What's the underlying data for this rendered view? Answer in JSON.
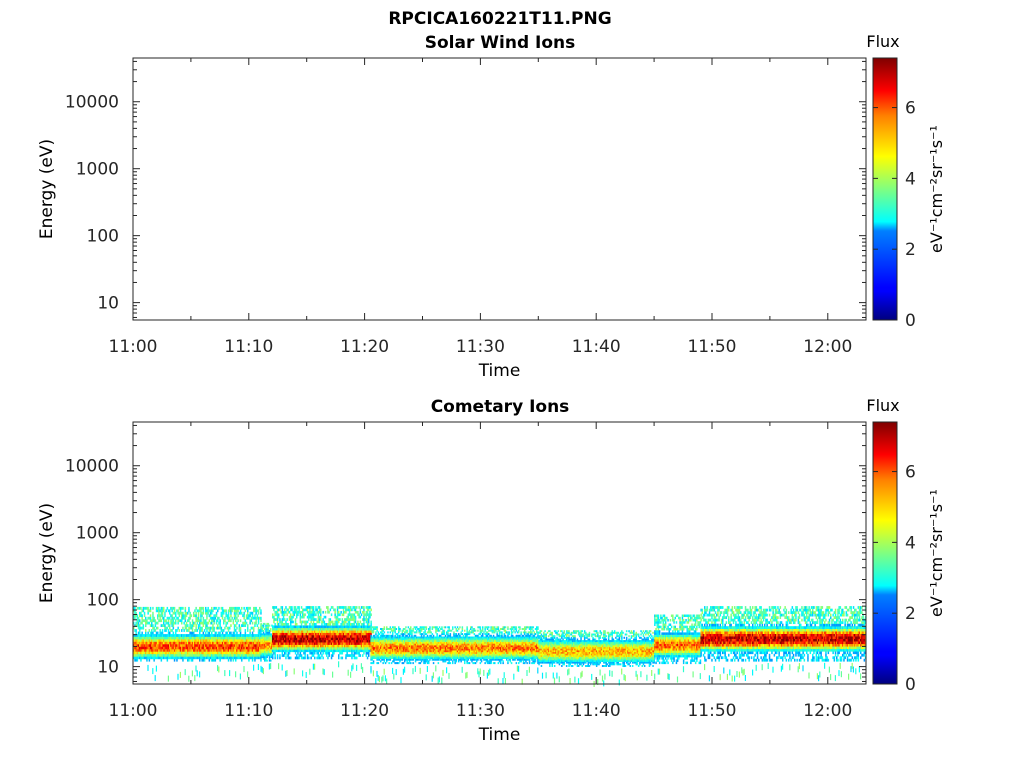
{
  "figure": {
    "title": "RPCICA160221T11.PNG"
  },
  "chart_data": [
    {
      "type": "heatmap",
      "title": "Solar Wind Ions",
      "xlabel": "Time",
      "ylabel": "Energy (eV)",
      "x_ticks": [
        "11:00",
        "11:10",
        "11:20",
        "11:30",
        "11:40",
        "11:50",
        "12:00"
      ],
      "x_range_minutes": [
        0,
        63.3
      ],
      "y_scale": "log",
      "y_ticks": [
        10,
        100,
        1000,
        10000
      ],
      "y_range": [
        5.5,
        45000
      ],
      "colorbar": {
        "title": "Flux",
        "label": "eV⁻¹cm⁻²sr⁻¹s⁻¹",
        "ticks": [
          0,
          2,
          4,
          6
        ],
        "range": [
          0,
          7.4
        ]
      },
      "bands": []
    },
    {
      "type": "heatmap",
      "title": "Cometary Ions",
      "xlabel": "Time",
      "ylabel": "Energy (eV)",
      "x_ticks": [
        "11:00",
        "11:10",
        "11:20",
        "11:30",
        "11:40",
        "11:50",
        "12:00"
      ],
      "x_range_minutes": [
        0,
        63.3
      ],
      "y_scale": "log",
      "y_ticks": [
        10,
        100,
        1000,
        10000
      ],
      "y_range": [
        5.5,
        45000
      ],
      "colorbar": {
        "title": "Flux",
        "label": "eV⁻¹cm⁻²sr⁻¹s⁻¹",
        "ticks": [
          0,
          2,
          4,
          6
        ],
        "range": [
          0,
          7.4
        ]
      },
      "bands": [
        {
          "t_start": 0,
          "t_end": 11,
          "e_low": 12,
          "e_high": 78,
          "e_core": 20,
          "peak_flux": 6.0
        },
        {
          "t_start": 11,
          "t_end": 12,
          "e_low": 12,
          "e_high": 45,
          "e_core": 21,
          "peak_flux": 5.4
        },
        {
          "t_start": 12,
          "t_end": 20.5,
          "e_low": 13,
          "e_high": 80,
          "e_core": 26,
          "peak_flux": 7.0
        },
        {
          "t_start": 20.5,
          "t_end": 35,
          "e_low": 11,
          "e_high": 40,
          "e_core": 19,
          "peak_flux": 5.6
        },
        {
          "t_start": 35,
          "t_end": 45,
          "e_low": 10,
          "e_high": 35,
          "e_core": 17,
          "peak_flux": 5.2
        },
        {
          "t_start": 45,
          "t_end": 49,
          "e_low": 11,
          "e_high": 60,
          "e_core": 21,
          "peak_flux": 5.8
        },
        {
          "t_start": 49,
          "t_end": 63.3,
          "e_low": 12,
          "e_high": 80,
          "e_core": 26,
          "peak_flux": 7.0
        }
      ]
    }
  ]
}
